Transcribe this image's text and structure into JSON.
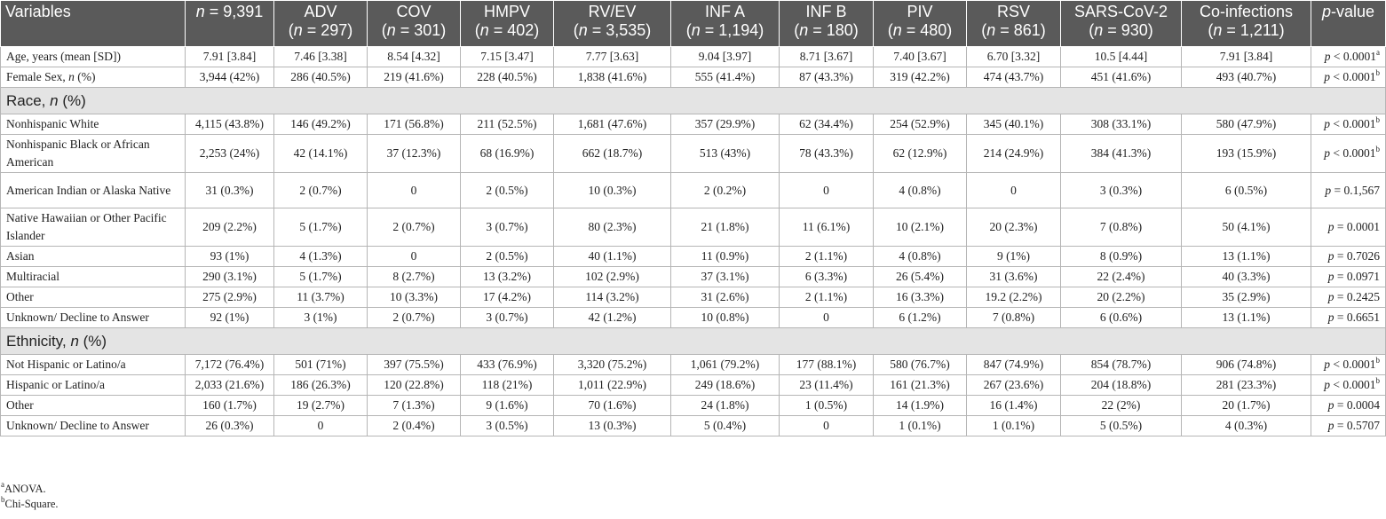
{
  "table": {
    "headers": [
      {
        "label": "Variables",
        "n": ""
      },
      {
        "label": "",
        "n": "9,391",
        "inline": true
      },
      {
        "label": "ADV",
        "n": "297"
      },
      {
        "label": "COV",
        "n": "301"
      },
      {
        "label": "HMPV",
        "n": "402"
      },
      {
        "label": "RV/EV",
        "n": "3,535"
      },
      {
        "label": "INF A",
        "n": "1,194"
      },
      {
        "label": "INF B",
        "n": "180"
      },
      {
        "label": "PIV",
        "n": "480"
      },
      {
        "label": "RSV",
        "n": "861"
      },
      {
        "label": "SARS-CoV-2",
        "n": "930"
      },
      {
        "label": "Co-infections",
        "n": "1,211"
      },
      {
        "label": "value",
        "n": ""
      }
    ],
    "rows": [
      {
        "type": "row",
        "label": "Age, years (mean [SD])",
        "cells": [
          "7.91 [3.84]",
          "7.46 [3.38]",
          "8.54 [4.32]",
          "7.15 [3.47]",
          "7.77 [3.63]",
          "9.04 [3.97]",
          "8.71 [3.67]",
          "7.40 [3.67]",
          "6.70 [3.32]",
          "10.5 [4.44]",
          "7.91 [3.84]"
        ],
        "p_op": "<",
        "p_val": "0.0001",
        "p_sup": "a"
      },
      {
        "type": "row",
        "label": "Female Sex, ",
        "label_n": "n",
        "label_suffix": " (%)",
        "cells": [
          "3,944 (42%)",
          "286 (40.5%)",
          "219 (41.6%)",
          "228 (40.5%)",
          "1,838 (41.6%)",
          "555 (41.4%)",
          "87 (43.3%)",
          "319 (42.2%)",
          "474 (43.7%)",
          "451 (41.6%)",
          "493 (40.7%)"
        ],
        "p_op": "<",
        "p_val": "0.0001",
        "p_sup": "b"
      },
      {
        "type": "section",
        "label": "Race, ",
        "label_n": "n",
        "label_suffix": " (%)"
      },
      {
        "type": "row",
        "label": "Nonhispanic White",
        "cells": [
          "4,115 (43.8%)",
          "146 (49.2%)",
          "171 (56.8%)",
          "211 (52.5%)",
          "1,681 (47.6%)",
          "357 (29.9%)",
          "62 (34.4%)",
          "254 (52.9%)",
          "345 (40.1%)",
          "308 (33.1%)",
          "580 (47.9%)"
        ],
        "p_op": "<",
        "p_val": "0.0001",
        "p_sup": "b"
      },
      {
        "type": "row",
        "tall": true,
        "label": "Nonhispanic Black or African American",
        "cells": [
          "2,253 (24%)",
          "42 (14.1%)",
          "37 (12.3%)",
          "68 (16.9%)",
          "662 (18.7%)",
          "513 (43%)",
          "78 (43.3%)",
          "62 (12.9%)",
          "214 (24.9%)",
          "384 (41.3%)",
          "193 (15.9%)"
        ],
        "p_op": "<",
        "p_val": "0.0001",
        "p_sup": "b"
      },
      {
        "type": "row",
        "tall": true,
        "label": "American Indian or Alaska Native",
        "cells": [
          "31 (0.3%)",
          "2 (0.7%)",
          "0",
          "2 (0.5%)",
          "10 (0.3%)",
          "2 (0.2%)",
          "0",
          "4 (0.8%)",
          "0",
          "3 (0.3%)",
          "6 (0.5%)"
        ],
        "p_op": "=",
        "p_val": "0.1,567",
        "p_sup": ""
      },
      {
        "type": "row",
        "tall": true,
        "label": "Native Hawaiian or Other Pacific Islander",
        "cells": [
          "209 (2.2%)",
          "5 (1.7%)",
          "2 (0.7%)",
          "3 (0.7%)",
          "80 (2.3%)",
          "21 (1.8%)",
          "11 (6.1%)",
          "10 (2.1%)",
          "20 (2.3%)",
          "7 (0.8%)",
          "50 (4.1%)"
        ],
        "p_op": "=",
        "p_val": "0.0001",
        "p_sup": ""
      },
      {
        "type": "row",
        "label": "Asian",
        "cells": [
          "93 (1%)",
          "4 (1.3%)",
          "0",
          "2 (0.5%)",
          "40 (1.1%)",
          "11 (0.9%)",
          "2 (1.1%)",
          "4 (0.8%)",
          "9 (1%)",
          "8 (0.9%)",
          "13 (1.1%)"
        ],
        "p_op": "=",
        "p_val": "0.7026",
        "p_sup": ""
      },
      {
        "type": "row",
        "label": "Multiracial",
        "cells": [
          "290 (3.1%)",
          "5 (1.7%)",
          "8 (2.7%)",
          "13 (3.2%)",
          "102 (2.9%)",
          "37 (3.1%)",
          "6 (3.3%)",
          "26 (5.4%)",
          "31 (3.6%)",
          "22 (2.4%)",
          "40 (3.3%)"
        ],
        "p_op": "=",
        "p_val": "0.0971",
        "p_sup": ""
      },
      {
        "type": "row",
        "label": "Other",
        "cells": [
          "275 (2.9%)",
          "11 (3.7%)",
          "10 (3.3%)",
          "17 (4.2%)",
          "114 (3.2%)",
          "31 (2.6%)",
          "2 (1.1%)",
          "16 (3.3%)",
          "19.2 (2.2%)",
          "20 (2.2%)",
          "35 (2.9%)"
        ],
        "p_op": "=",
        "p_val": "0.2425",
        "p_sup": ""
      },
      {
        "type": "row",
        "label": "Unknown/ Decline to Answer",
        "cells": [
          "92 (1%)",
          "3 (1%)",
          "2 (0.7%)",
          "3 (0.7%)",
          "42 (1.2%)",
          "10 (0.8%)",
          "0",
          "6 (1.2%)",
          "7 (0.8%)",
          "6 (0.6%)",
          "13 (1.1%)"
        ],
        "p_op": "=",
        "p_val": "0.6651",
        "p_sup": ""
      },
      {
        "type": "section",
        "label": "Ethnicity, ",
        "label_n": "n",
        "label_suffix": " (%)"
      },
      {
        "type": "row",
        "label": "Not Hispanic or Latino/a",
        "cells": [
          "7,172 (76.4%)",
          "501 (71%)",
          "397 (75.5%)",
          "433 (76.9%)",
          "3,320 (75.2%)",
          "1,061 (79.2%)",
          "177 (88.1%)",
          "580 (76.7%)",
          "847 (74.9%)",
          "854 (78.7%)",
          "906 (74.8%)"
        ],
        "p_op": "<",
        "p_val": "0.0001",
        "p_sup": "b"
      },
      {
        "type": "row",
        "label": "Hispanic or Latino/a",
        "cells": [
          "2,033 (21.6%)",
          "186 (26.3%)",
          "120 (22.8%)",
          "118 (21%)",
          "1,011 (22.9%)",
          "249 (18.6%)",
          "23 (11.4%)",
          "161 (21.3%)",
          "267 (23.6%)",
          "204 (18.8%)",
          "281 (23.3%)"
        ],
        "p_op": "<",
        "p_val": "0.0001",
        "p_sup": "b"
      },
      {
        "type": "row",
        "label": "Other",
        "cells": [
          "160 (1.7%)",
          "19 (2.7%)",
          "7 (1.3%)",
          "9 (1.6%)",
          "70 (1.6%)",
          "24 (1.8%)",
          "1 (0.5%)",
          "14 (1.9%)",
          "16 (1.4%)",
          "22 (2%)",
          "20 (1.7%)"
        ],
        "p_op": "=",
        "p_val": "0.0004",
        "p_sup": ""
      },
      {
        "type": "row",
        "label": "Unknown/ Decline to Answer",
        "cells": [
          "26 (0.3%)",
          "0",
          "2 (0.4%)",
          "3 (0.5%)",
          "13 (0.3%)",
          "5 (0.4%)",
          "0",
          "1 (0.1%)",
          "1 (0.1%)",
          "5 (0.5%)",
          "4 (0.3%)"
        ],
        "p_op": "=",
        "p_val": "0.5707",
        "p_sup": ""
      }
    ]
  },
  "footnotes": [
    {
      "mark": "a",
      "text": "ANOVA."
    },
    {
      "mark": "b",
      "text": "Chi-Square."
    }
  ]
}
